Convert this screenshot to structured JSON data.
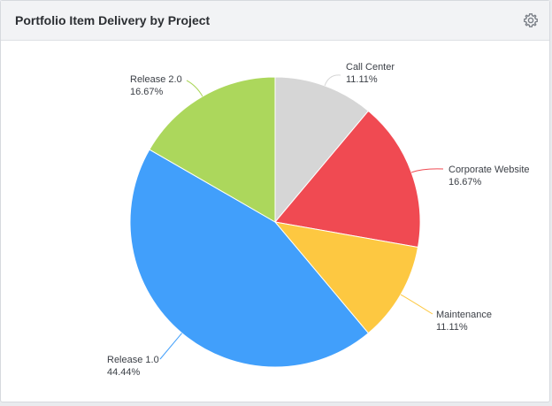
{
  "header": {
    "title": "Portfolio Item Delivery by Project",
    "settings_icon": "gear-icon"
  },
  "chart_data": {
    "type": "pie",
    "title": "Portfolio Item Delivery by Project",
    "slices": [
      {
        "label": "Call Center",
        "value": 11.11,
        "value_label": "11.11%",
        "color": "#d6d6d6"
      },
      {
        "label": "Corporate Website",
        "value": 16.67,
        "value_label": "16.67%",
        "color": "#f04a52"
      },
      {
        "label": "Maintenance",
        "value": 11.11,
        "value_label": "11.11%",
        "color": "#fdc841"
      },
      {
        "label": "Release 1.0",
        "value": 44.44,
        "value_label": "44.44%",
        "color": "#419ffb"
      },
      {
        "label": "Release 2.0",
        "value": 16.67,
        "value_label": "16.67%",
        "color": "#acd75c"
      }
    ],
    "start_angle": "12 o'clock",
    "direction": "clockwise",
    "legend": "none"
  }
}
